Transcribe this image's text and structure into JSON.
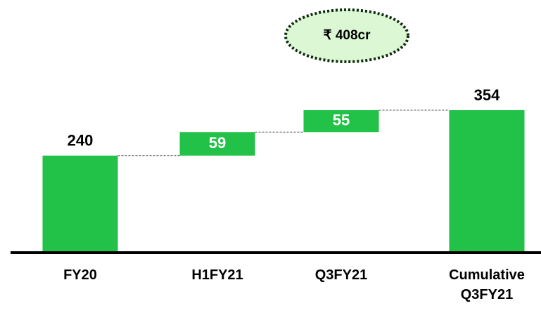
{
  "chart_data": {
    "type": "waterfall",
    "annotation": "₹ 408cr",
    "categories": [
      "FY20",
      "H1FY21",
      "Q3FY21",
      "Cumulative Q3FY21"
    ],
    "values": [
      240,
      59,
      55,
      354
    ],
    "measures": [
      "absolute",
      "relative",
      "relative",
      "total"
    ],
    "color": "#22c147"
  }
}
